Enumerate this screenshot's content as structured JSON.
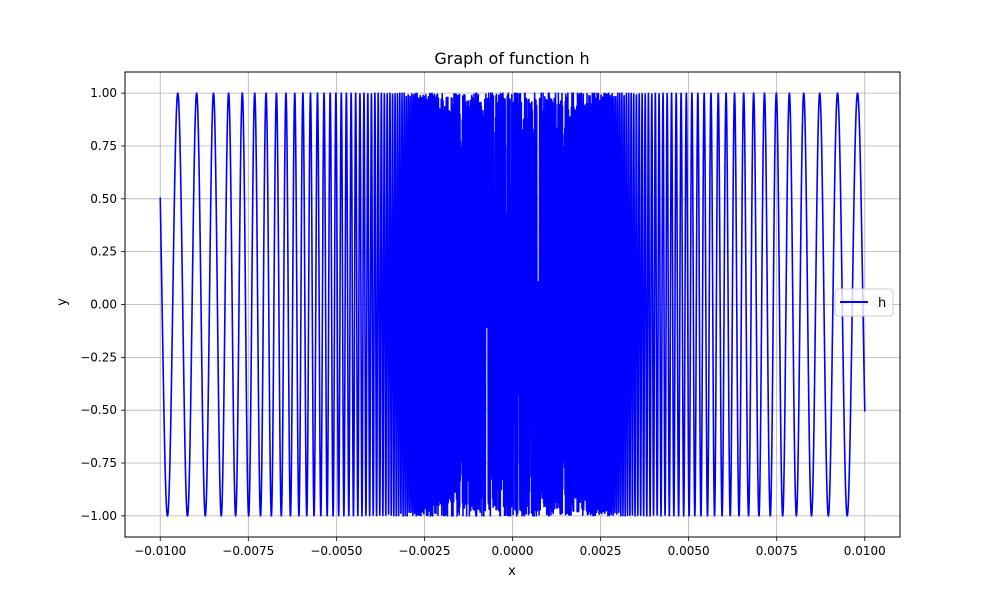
{
  "chart_data": {
    "type": "line",
    "title": "Graph of function h",
    "xlabel": "x",
    "ylabel": "y",
    "function": "sin(1/x)",
    "xlim": [
      -0.011,
      0.011
    ],
    "ylim": [
      -1.1,
      1.1
    ],
    "x_range": [
      -0.01,
      0.01
    ],
    "grid": true,
    "legend_position": "center-right",
    "series": [
      {
        "name": "h",
        "color": "#0000ff",
        "endpoints": [
          {
            "x": -0.01,
            "y": 0.506
          },
          {
            "x": 0.01,
            "y": -0.506
          }
        ]
      }
    ],
    "xticks": [
      {
        "value": -0.01,
        "label": "−0.0100"
      },
      {
        "value": -0.0075,
        "label": "−0.0075"
      },
      {
        "value": -0.005,
        "label": "−0.0050"
      },
      {
        "value": -0.0025,
        "label": "−0.0025"
      },
      {
        "value": 0.0,
        "label": "0.0000"
      },
      {
        "value": 0.0025,
        "label": "0.0025"
      },
      {
        "value": 0.005,
        "label": "0.0050"
      },
      {
        "value": 0.0075,
        "label": "0.0075"
      },
      {
        "value": 0.01,
        "label": "0.0100"
      }
    ],
    "yticks": [
      {
        "value": 1.0,
        "label": "1.00"
      },
      {
        "value": 0.75,
        "label": "0.75"
      },
      {
        "value": 0.5,
        "label": "0.50"
      },
      {
        "value": 0.25,
        "label": "0.25"
      },
      {
        "value": 0.0,
        "label": "0.00"
      },
      {
        "value": -0.25,
        "label": "−0.25"
      },
      {
        "value": -0.5,
        "label": "−0.50"
      },
      {
        "value": -0.75,
        "label": "−0.75"
      },
      {
        "value": -1.0,
        "label": "−1.00"
      }
    ]
  }
}
